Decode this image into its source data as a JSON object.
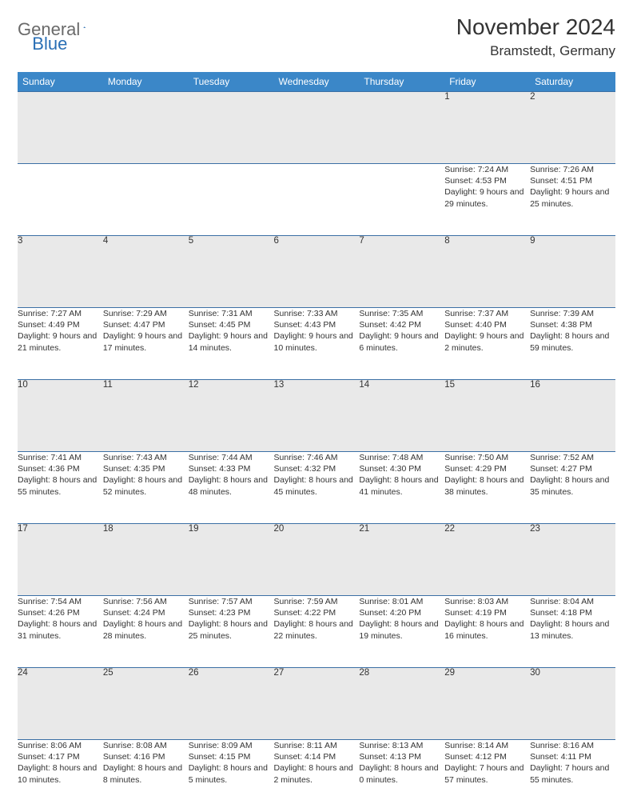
{
  "logo": {
    "text1": "General",
    "text2": "Blue"
  },
  "title": "November 2024",
  "location": "Bramstedt, Germany",
  "colors": {
    "header_bg": "#3b87c8",
    "header_text": "#ffffff",
    "daynum_bg": "#e9e9e9",
    "row_border": "#3b6fa5",
    "body_text": "#333333",
    "logo_gray": "#6a6a6a",
    "logo_blue": "#2a6fb5",
    "page_bg": "#ffffff"
  },
  "fonts": {
    "title_size_pt": 21,
    "location_size_pt": 13,
    "weekday_size_pt": 9,
    "daynum_size_pt": 9,
    "cell_size_pt": 8
  },
  "calendar": {
    "type": "table",
    "weekdays": [
      "Sunday",
      "Monday",
      "Tuesday",
      "Wednesday",
      "Thursday",
      "Friday",
      "Saturday"
    ],
    "start_weekday_index": 5,
    "days": [
      {
        "n": 1,
        "sunrise": "7:24 AM",
        "sunset": "4:53 PM",
        "daylight": "9 hours and 29 minutes."
      },
      {
        "n": 2,
        "sunrise": "7:26 AM",
        "sunset": "4:51 PM",
        "daylight": "9 hours and 25 minutes."
      },
      {
        "n": 3,
        "sunrise": "7:27 AM",
        "sunset": "4:49 PM",
        "daylight": "9 hours and 21 minutes."
      },
      {
        "n": 4,
        "sunrise": "7:29 AM",
        "sunset": "4:47 PM",
        "daylight": "9 hours and 17 minutes."
      },
      {
        "n": 5,
        "sunrise": "7:31 AM",
        "sunset": "4:45 PM",
        "daylight": "9 hours and 14 minutes."
      },
      {
        "n": 6,
        "sunrise": "7:33 AM",
        "sunset": "4:43 PM",
        "daylight": "9 hours and 10 minutes."
      },
      {
        "n": 7,
        "sunrise": "7:35 AM",
        "sunset": "4:42 PM",
        "daylight": "9 hours and 6 minutes."
      },
      {
        "n": 8,
        "sunrise": "7:37 AM",
        "sunset": "4:40 PM",
        "daylight": "9 hours and 2 minutes."
      },
      {
        "n": 9,
        "sunrise": "7:39 AM",
        "sunset": "4:38 PM",
        "daylight": "8 hours and 59 minutes."
      },
      {
        "n": 10,
        "sunrise": "7:41 AM",
        "sunset": "4:36 PM",
        "daylight": "8 hours and 55 minutes."
      },
      {
        "n": 11,
        "sunrise": "7:43 AM",
        "sunset": "4:35 PM",
        "daylight": "8 hours and 52 minutes."
      },
      {
        "n": 12,
        "sunrise": "7:44 AM",
        "sunset": "4:33 PM",
        "daylight": "8 hours and 48 minutes."
      },
      {
        "n": 13,
        "sunrise": "7:46 AM",
        "sunset": "4:32 PM",
        "daylight": "8 hours and 45 minutes."
      },
      {
        "n": 14,
        "sunrise": "7:48 AM",
        "sunset": "4:30 PM",
        "daylight": "8 hours and 41 minutes."
      },
      {
        "n": 15,
        "sunrise": "7:50 AM",
        "sunset": "4:29 PM",
        "daylight": "8 hours and 38 minutes."
      },
      {
        "n": 16,
        "sunrise": "7:52 AM",
        "sunset": "4:27 PM",
        "daylight": "8 hours and 35 minutes."
      },
      {
        "n": 17,
        "sunrise": "7:54 AM",
        "sunset": "4:26 PM",
        "daylight": "8 hours and 31 minutes."
      },
      {
        "n": 18,
        "sunrise": "7:56 AM",
        "sunset": "4:24 PM",
        "daylight": "8 hours and 28 minutes."
      },
      {
        "n": 19,
        "sunrise": "7:57 AM",
        "sunset": "4:23 PM",
        "daylight": "8 hours and 25 minutes."
      },
      {
        "n": 20,
        "sunrise": "7:59 AM",
        "sunset": "4:22 PM",
        "daylight": "8 hours and 22 minutes."
      },
      {
        "n": 21,
        "sunrise": "8:01 AM",
        "sunset": "4:20 PM",
        "daylight": "8 hours and 19 minutes."
      },
      {
        "n": 22,
        "sunrise": "8:03 AM",
        "sunset": "4:19 PM",
        "daylight": "8 hours and 16 minutes."
      },
      {
        "n": 23,
        "sunrise": "8:04 AM",
        "sunset": "4:18 PM",
        "daylight": "8 hours and 13 minutes."
      },
      {
        "n": 24,
        "sunrise": "8:06 AM",
        "sunset": "4:17 PM",
        "daylight": "8 hours and 10 minutes."
      },
      {
        "n": 25,
        "sunrise": "8:08 AM",
        "sunset": "4:16 PM",
        "daylight": "8 hours and 8 minutes."
      },
      {
        "n": 26,
        "sunrise": "8:09 AM",
        "sunset": "4:15 PM",
        "daylight": "8 hours and 5 minutes."
      },
      {
        "n": 27,
        "sunrise": "8:11 AM",
        "sunset": "4:14 PM",
        "daylight": "8 hours and 2 minutes."
      },
      {
        "n": 28,
        "sunrise": "8:13 AM",
        "sunset": "4:13 PM",
        "daylight": "8 hours and 0 minutes."
      },
      {
        "n": 29,
        "sunrise": "8:14 AM",
        "sunset": "4:12 PM",
        "daylight": "7 hours and 57 minutes."
      },
      {
        "n": 30,
        "sunrise": "8:16 AM",
        "sunset": "4:11 PM",
        "daylight": "7 hours and 55 minutes."
      }
    ],
    "labels": {
      "sunrise": "Sunrise:",
      "sunset": "Sunset:",
      "daylight": "Daylight:"
    }
  }
}
